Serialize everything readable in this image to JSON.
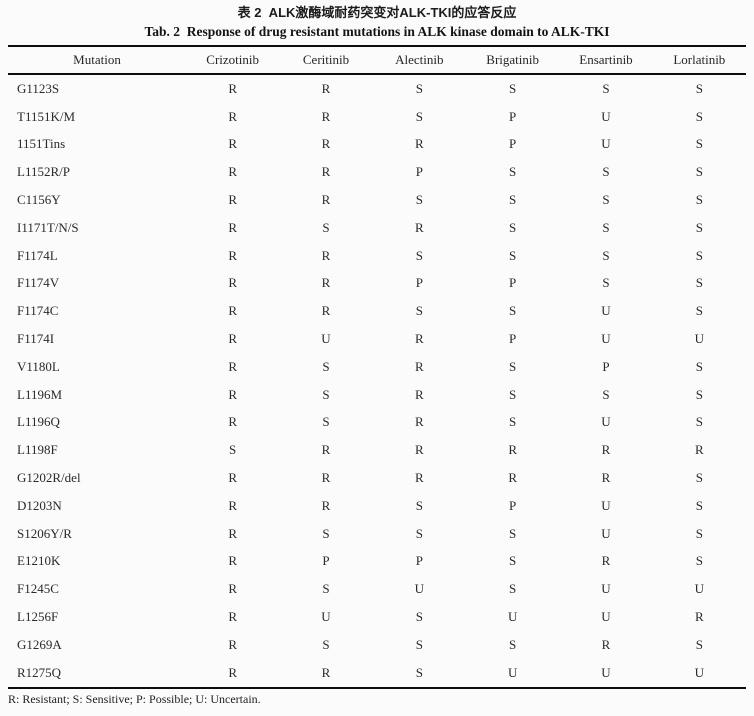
{
  "page": {
    "title_zh": "表 2  ALK激酶域耐药突变对ALK-TKI的应答反应",
    "title_en": "Tab. 2  Response of drug resistant mutations in ALK kinase domain to ALK-TKI",
    "footnote": "R: Resistant; S: Sensitive; P: Possible; U: Uncertain."
  },
  "table": {
    "columns": [
      "Mutation",
      "Crizotinib",
      "Ceritinib",
      "Alectinib",
      "Brigatinib",
      "Ensartinib",
      "Lorlatinib"
    ],
    "rows": [
      {
        "mutation": "G1123S",
        "values": [
          "R",
          "R",
          "S",
          "S",
          "S",
          "S"
        ]
      },
      {
        "mutation": "T1151K/M",
        "values": [
          "R",
          "R",
          "S",
          "P",
          "U",
          "S"
        ]
      },
      {
        "mutation": "1151Tins",
        "values": [
          "R",
          "R",
          "R",
          "P",
          "U",
          "S"
        ]
      },
      {
        "mutation": "L1152R/P",
        "values": [
          "R",
          "R",
          "P",
          "S",
          "S",
          "S"
        ]
      },
      {
        "mutation": "C1156Y",
        "values": [
          "R",
          "R",
          "S",
          "S",
          "S",
          "S"
        ]
      },
      {
        "mutation": "I1171T/N/S",
        "values": [
          "R",
          "S",
          "R",
          "S",
          "S",
          "S"
        ]
      },
      {
        "mutation": "F1174L",
        "values": [
          "R",
          "R",
          "S",
          "S",
          "S",
          "S"
        ]
      },
      {
        "mutation": "F1174V",
        "values": [
          "R",
          "R",
          "P",
          "P",
          "S",
          "S"
        ]
      },
      {
        "mutation": "F1174C",
        "values": [
          "R",
          "R",
          "S",
          "S",
          "U",
          "S"
        ]
      },
      {
        "mutation": "F1174I",
        "values": [
          "R",
          "U",
          "R",
          "P",
          "U",
          "U"
        ]
      },
      {
        "mutation": "V1180L",
        "values": [
          "R",
          "S",
          "R",
          "S",
          "P",
          "S"
        ]
      },
      {
        "mutation": "L1196M",
        "values": [
          "R",
          "S",
          "R",
          "S",
          "S",
          "S"
        ]
      },
      {
        "mutation": "L1196Q",
        "values": [
          "R",
          "S",
          "R",
          "S",
          "U",
          "S"
        ]
      },
      {
        "mutation": "L1198F",
        "values": [
          "S",
          "R",
          "R",
          "R",
          "R",
          "R"
        ]
      },
      {
        "mutation": "G1202R/del",
        "values": [
          "R",
          "R",
          "R",
          "R",
          "R",
          "S"
        ]
      },
      {
        "mutation": "D1203N",
        "values": [
          "R",
          "R",
          "S",
          "P",
          "U",
          "S"
        ]
      },
      {
        "mutation": "S1206Y/R",
        "values": [
          "R",
          "S",
          "S",
          "S",
          "U",
          "S"
        ]
      },
      {
        "mutation": "E1210K",
        "values": [
          "R",
          "P",
          "P",
          "S",
          "R",
          "S"
        ]
      },
      {
        "mutation": "F1245C",
        "values": [
          "R",
          "S",
          "U",
          "S",
          "U",
          "U"
        ]
      },
      {
        "mutation": "L1256F",
        "values": [
          "R",
          "U",
          "S",
          "U",
          "U",
          "R"
        ]
      },
      {
        "mutation": "G1269A",
        "values": [
          "R",
          "S",
          "S",
          "S",
          "R",
          "S"
        ]
      },
      {
        "mutation": "R1275Q",
        "values": [
          "R",
          "R",
          "S",
          "U",
          "U",
          "U"
        ]
      }
    ]
  },
  "colors": {
    "background": "#fbfbfb",
    "text": "#222222",
    "rule": "#0d0d0d"
  }
}
